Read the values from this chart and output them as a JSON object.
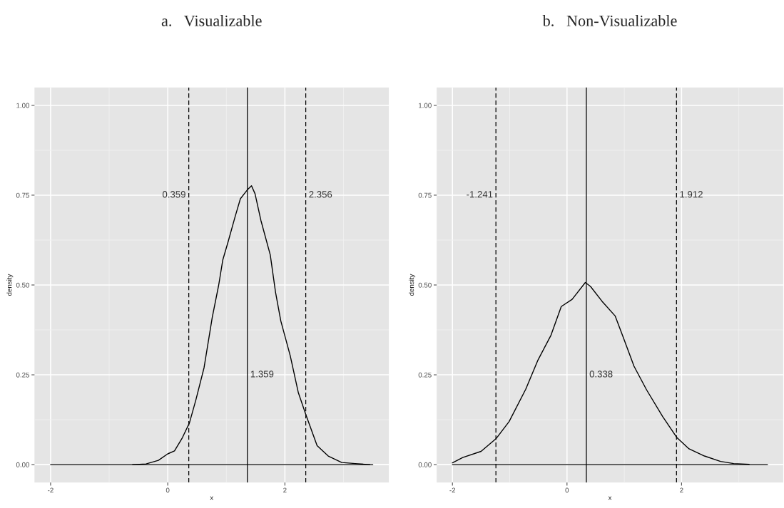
{
  "chart_data": [
    {
      "type": "line",
      "title": "a.   Visualizable",
      "xlabel": "x",
      "ylabel": "density",
      "series": [
        {
          "color": "#000000",
          "x": [
            -0.6,
            -0.37,
            -0.16,
            0,
            0.115,
            0.25,
            0.37,
            0.48,
            0.62,
            0.76,
            0.87,
            0.94,
            1.03,
            1.15,
            1.24,
            1.36,
            1.43,
            1.49,
            1.59,
            1.75,
            1.84,
            1.93,
            2.09,
            2.23,
            2.36,
            2.55,
            2.74,
            2.97,
            3.2,
            3.45
          ],
          "values": [
            0,
            0.002,
            0.012,
            0.03,
            0.038,
            0.075,
            0.116,
            0.18,
            0.27,
            0.41,
            0.5,
            0.57,
            0.62,
            0.69,
            0.74,
            0.765,
            0.776,
            0.754,
            0.68,
            0.584,
            0.48,
            0.4,
            0.304,
            0.2,
            0.138,
            0.053,
            0.024,
            0.006,
            0.003,
            0
          ]
        },
        {
          "color": "#000000",
          "x": [
            -2,
            3.5
          ],
          "values": [
            0,
            0
          ]
        }
      ],
      "ref_lines": [
        {
          "axis": "x",
          "value": 0.359,
          "label": "0.359",
          "line_style": "dashed",
          "color": "#000000"
        },
        {
          "axis": "x",
          "value": 1.359,
          "label": "1.359",
          "line_style": "solid",
          "color": "#000000"
        },
        {
          "axis": "x",
          "value": 2.356,
          "label": "2.356",
          "line_style": "dashed",
          "color": "#000000"
        }
      ],
      "xlim": [
        -2.275,
        3.775
      ],
      "ylim": [
        -0.05,
        1.05
      ],
      "xticks": [
        -2,
        0,
        2
      ],
      "yticks": [
        {
          "value": 0,
          "label": "0.00"
        },
        {
          "value": 0.25,
          "label": "0.25"
        },
        {
          "value": 0.5,
          "label": "0.50"
        },
        {
          "value": 0.75,
          "label": "0.75"
        },
        {
          "value": 1,
          "label": "1.00"
        }
      ],
      "grid": true
    },
    {
      "type": "line",
      "title": "b.   Non-Visualizable",
      "xlabel": "x",
      "ylabel": "density",
      "series": [
        {
          "color": "#000000",
          "x": [
            -2,
            -1.82,
            -1.5,
            -1.24,
            -1.01,
            -0.72,
            -0.51,
            -0.28,
            -0.1,
            0.09,
            0.32,
            0.41,
            0.61,
            0.84,
            0.98,
            1.17,
            1.39,
            1.67,
            1.92,
            2.13,
            2.4,
            2.68,
            2.91,
            3.18
          ],
          "values": [
            0.005,
            0.02,
            0.037,
            0.072,
            0.12,
            0.21,
            0.29,
            0.36,
            0.44,
            0.46,
            0.507,
            0.496,
            0.455,
            0.414,
            0.355,
            0.274,
            0.208,
            0.134,
            0.075,
            0.044,
            0.024,
            0.009,
            0.003,
            0.001
          ]
        },
        {
          "color": "#000000",
          "x": [
            -2,
            3.5
          ],
          "values": [
            0,
            0
          ]
        }
      ],
      "ref_lines": [
        {
          "axis": "x",
          "value": -1.241,
          "label": "-1.241",
          "line_style": "dashed",
          "color": "#000000"
        },
        {
          "axis": "x",
          "value": 0.338,
          "label": "0.338",
          "line_style": "solid",
          "color": "#000000"
        },
        {
          "axis": "x",
          "value": 1.912,
          "label": "1.912",
          "line_style": "dashed",
          "color": "#000000"
        }
      ],
      "xlim": [
        -2.275,
        3.775
      ],
      "ylim": [
        -0.05,
        1.05
      ],
      "xticks": [
        -2,
        0,
        2
      ],
      "yticks": [
        {
          "value": 0,
          "label": "0.00"
        },
        {
          "value": 0.25,
          "label": "0.25"
        },
        {
          "value": 0.5,
          "label": "0.50"
        },
        {
          "value": 0.75,
          "label": "0.75"
        },
        {
          "value": 1,
          "label": "1.00"
        }
      ],
      "grid": true
    }
  ]
}
